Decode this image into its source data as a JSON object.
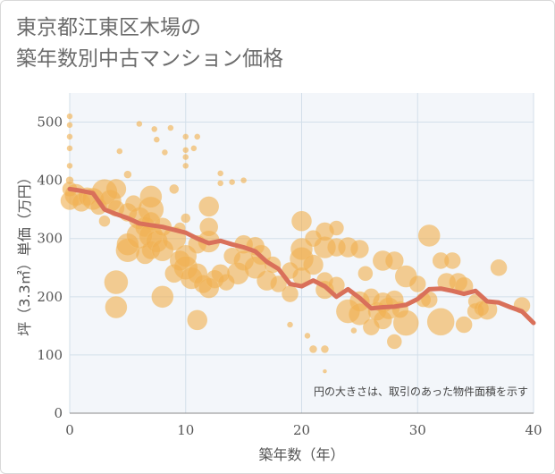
{
  "title": {
    "line1": "東京都江東区木場の",
    "line2": "築年数別中古マンション価格"
  },
  "colors": {
    "bubble": "#f0b050",
    "line": "#d9705a",
    "grid": "#d3dfea",
    "plot_bg": "#f3f6fa"
  },
  "chart_data": {
    "type": "scatter",
    "xlabel": "築年数（年）",
    "ylabel": "坪（3.3㎡）単価（万円）",
    "xlim": [
      0,
      40
    ],
    "ylim": [
      0,
      550
    ],
    "xticks": [
      "0",
      "10",
      "20",
      "30",
      "40"
    ],
    "yticks": [
      "0",
      "100",
      "200",
      "300",
      "400",
      "500"
    ],
    "annotation": "円の大きさは、取引のあった物件面積を示す",
    "grid": true,
    "trend_line": {
      "x": [
        0,
        1,
        2,
        3,
        4,
        5,
        6,
        7,
        8,
        9,
        10,
        11,
        12,
        13,
        14,
        15,
        16,
        17,
        18,
        19,
        20,
        21,
        22,
        23,
        24,
        25,
        26,
        27,
        28,
        29,
        30,
        31,
        32,
        33,
        34,
        35,
        36,
        37,
        38,
        39,
        40
      ],
      "y": [
        385,
        382,
        378,
        350,
        342,
        335,
        326,
        323,
        320,
        315,
        310,
        300,
        292,
        296,
        290,
        285,
        278,
        260,
        248,
        222,
        218,
        228,
        218,
        200,
        213,
        198,
        180,
        182,
        183,
        186,
        196,
        213,
        214,
        210,
        205,
        210,
        192,
        190,
        182,
        175,
        155
      ]
    },
    "points": [
      {
        "x": 0,
        "y": 510,
        "s": 3
      },
      {
        "x": 0,
        "y": 495,
        "s": 3
      },
      {
        "x": 0,
        "y": 475,
        "s": 3
      },
      {
        "x": 0,
        "y": 455,
        "s": 3
      },
      {
        "x": 0,
        "y": 425,
        "s": 3
      },
      {
        "x": 0,
        "y": 400,
        "s": 4
      },
      {
        "x": 0,
        "y": 385,
        "s": 8
      },
      {
        "x": 0,
        "y": 365,
        "s": 10
      },
      {
        "x": 0.5,
        "y": 375,
        "s": 12
      },
      {
        "x": 1,
        "y": 362,
        "s": 10
      },
      {
        "x": 1.5,
        "y": 372,
        "s": 10
      },
      {
        "x": 2,
        "y": 368,
        "s": 12
      },
      {
        "x": 2.5,
        "y": 355,
        "s": 9
      },
      {
        "x": 3,
        "y": 380,
        "s": 14
      },
      {
        "x": 3,
        "y": 330,
        "s": 6
      },
      {
        "x": 3.5,
        "y": 365,
        "s": 12
      },
      {
        "x": 4,
        "y": 385,
        "s": 11
      },
      {
        "x": 4,
        "y": 352,
        "s": 9
      },
      {
        "x": 4,
        "y": 225,
        "s": 13
      },
      {
        "x": 4,
        "y": 182,
        "s": 12
      },
      {
        "x": 4.3,
        "y": 450,
        "s": 3
      },
      {
        "x": 5,
        "y": 410,
        "s": 4
      },
      {
        "x": 5,
        "y": 345,
        "s": 10
      },
      {
        "x": 5,
        "y": 290,
        "s": 12
      },
      {
        "x": 5,
        "y": 280,
        "s": 13
      },
      {
        "x": 5.5,
        "y": 360,
        "s": 9
      },
      {
        "x": 6,
        "y": 497,
        "s": 3
      },
      {
        "x": 6,
        "y": 335,
        "s": 12
      },
      {
        "x": 6,
        "y": 305,
        "s": 14
      },
      {
        "x": 6.5,
        "y": 320,
        "s": 11
      },
      {
        "x": 6.5,
        "y": 272,
        "s": 10
      },
      {
        "x": 7,
        "y": 372,
        "s": 12
      },
      {
        "x": 7,
        "y": 350,
        "s": 14
      },
      {
        "x": 7,
        "y": 330,
        "s": 10
      },
      {
        "x": 7,
        "y": 305,
        "s": 13
      },
      {
        "x": 7,
        "y": 280,
        "s": 10
      },
      {
        "x": 7.3,
        "y": 488,
        "s": 3
      },
      {
        "x": 7.5,
        "y": 470,
        "s": 3
      },
      {
        "x": 7.5,
        "y": 295,
        "s": 12
      },
      {
        "x": 8,
        "y": 320,
        "s": 10
      },
      {
        "x": 8,
        "y": 280,
        "s": 12
      },
      {
        "x": 8,
        "y": 200,
        "s": 12
      },
      {
        "x": 8.2,
        "y": 448,
        "s": 3
      },
      {
        "x": 8.7,
        "y": 490,
        "s": 3
      },
      {
        "x": 9,
        "y": 385,
        "s": 5
      },
      {
        "x": 9,
        "y": 300,
        "s": 13
      },
      {
        "x": 9,
        "y": 240,
        "s": 10
      },
      {
        "x": 9.5,
        "y": 262,
        "s": 11
      },
      {
        "x": 9.5,
        "y": 318,
        "s": 6
      },
      {
        "x": 10,
        "y": 475,
        "s": 3
      },
      {
        "x": 10,
        "y": 452,
        "s": 3
      },
      {
        "x": 10,
        "y": 440,
        "s": 3
      },
      {
        "x": 10,
        "y": 425,
        "s": 3
      },
      {
        "x": 10,
        "y": 335,
        "s": 5
      },
      {
        "x": 10,
        "y": 270,
        "s": 12
      },
      {
        "x": 10,
        "y": 250,
        "s": 13
      },
      {
        "x": 10.5,
        "y": 232,
        "s": 12
      },
      {
        "x": 10.7,
        "y": 455,
        "s": 3
      },
      {
        "x": 11,
        "y": 475,
        "s": 3
      },
      {
        "x": 11,
        "y": 290,
        "s": 10
      },
      {
        "x": 11,
        "y": 240,
        "s": 11
      },
      {
        "x": 11,
        "y": 160,
        "s": 11
      },
      {
        "x": 11.5,
        "y": 222,
        "s": 10
      },
      {
        "x": 12,
        "y": 355,
        "s": 11
      },
      {
        "x": 12,
        "y": 320,
        "s": 10
      },
      {
        "x": 12,
        "y": 295,
        "s": 12
      },
      {
        "x": 12,
        "y": 215,
        "s": 11
      },
      {
        "x": 12.5,
        "y": 230,
        "s": 10
      },
      {
        "x": 13,
        "y": 412,
        "s": 3
      },
      {
        "x": 13,
        "y": 395,
        "s": 3
      },
      {
        "x": 13,
        "y": 240,
        "s": 10
      },
      {
        "x": 13.5,
        "y": 225,
        "s": 9
      },
      {
        "x": 14,
        "y": 397,
        "s": 3
      },
      {
        "x": 14,
        "y": 270,
        "s": 9
      },
      {
        "x": 14.5,
        "y": 240,
        "s": 12
      },
      {
        "x": 15,
        "y": 400,
        "s": 3
      },
      {
        "x": 15,
        "y": 290,
        "s": 10
      },
      {
        "x": 15,
        "y": 262,
        "s": 11
      },
      {
        "x": 16,
        "y": 287,
        "s": 10
      },
      {
        "x": 16,
        "y": 250,
        "s": 12
      },
      {
        "x": 16.5,
        "y": 272,
        "s": 11
      },
      {
        "x": 17,
        "y": 228,
        "s": 11
      },
      {
        "x": 17.5,
        "y": 255,
        "s": 9
      },
      {
        "x": 18,
        "y": 222,
        "s": 9
      },
      {
        "x": 19,
        "y": 245,
        "s": 9
      },
      {
        "x": 19,
        "y": 205,
        "s": 9
      },
      {
        "x": 19,
        "y": 152,
        "s": 3
      },
      {
        "x": 20,
        "y": 330,
        "s": 11
      },
      {
        "x": 20,
        "y": 282,
        "s": 12
      },
      {
        "x": 20,
        "y": 265,
        "s": 13
      },
      {
        "x": 20,
        "y": 235,
        "s": 10
      },
      {
        "x": 20.5,
        "y": 133,
        "s": 3
      },
      {
        "x": 21,
        "y": 300,
        "s": 9
      },
      {
        "x": 21,
        "y": 255,
        "s": 11
      },
      {
        "x": 21,
        "y": 110,
        "s": 4
      },
      {
        "x": 22,
        "y": 312,
        "s": 10
      },
      {
        "x": 22,
        "y": 285,
        "s": 12
      },
      {
        "x": 22,
        "y": 228,
        "s": 9
      },
      {
        "x": 22,
        "y": 212,
        "s": 10
      },
      {
        "x": 22,
        "y": 110,
        "s": 4
      },
      {
        "x": 22,
        "y": 72,
        "s": 2
      },
      {
        "x": 23,
        "y": 318,
        "s": 8
      },
      {
        "x": 23,
        "y": 285,
        "s": 10
      },
      {
        "x": 23,
        "y": 220,
        "s": 9
      },
      {
        "x": 24,
        "y": 285,
        "s": 11
      },
      {
        "x": 24,
        "y": 175,
        "s": 13
      },
      {
        "x": 24.5,
        "y": 142,
        "s": 3
      },
      {
        "x": 25,
        "y": 282,
        "s": 10
      },
      {
        "x": 25,
        "y": 192,
        "s": 11
      },
      {
        "x": 25,
        "y": 170,
        "s": 12
      },
      {
        "x": 25.5,
        "y": 240,
        "s": 8
      },
      {
        "x": 26,
        "y": 200,
        "s": 9
      },
      {
        "x": 26,
        "y": 148,
        "s": 9
      },
      {
        "x": 26.5,
        "y": 175,
        "s": 10
      },
      {
        "x": 27,
        "y": 262,
        "s": 11
      },
      {
        "x": 27,
        "y": 190,
        "s": 11
      },
      {
        "x": 27,
        "y": 160,
        "s": 10
      },
      {
        "x": 27.5,
        "y": 180,
        "s": 12
      },
      {
        "x": 28,
        "y": 262,
        "s": 10
      },
      {
        "x": 28,
        "y": 195,
        "s": 10
      },
      {
        "x": 28,
        "y": 123,
        "s": 8
      },
      {
        "x": 28.5,
        "y": 178,
        "s": 9
      },
      {
        "x": 29,
        "y": 235,
        "s": 12
      },
      {
        "x": 29,
        "y": 155,
        "s": 14
      },
      {
        "x": 30,
        "y": 222,
        "s": 9
      },
      {
        "x": 30.5,
        "y": 195,
        "s": 8
      },
      {
        "x": 31,
        "y": 305,
        "s": 12
      },
      {
        "x": 31,
        "y": 195,
        "s": 9
      },
      {
        "x": 32,
        "y": 262,
        "s": 9
      },
      {
        "x": 32,
        "y": 157,
        "s": 15
      },
      {
        "x": 32.5,
        "y": 225,
        "s": 10
      },
      {
        "x": 33,
        "y": 262,
        "s": 9
      },
      {
        "x": 33.5,
        "y": 225,
        "s": 10
      },
      {
        "x": 34,
        "y": 218,
        "s": 10
      },
      {
        "x": 34,
        "y": 152,
        "s": 9
      },
      {
        "x": 35,
        "y": 192,
        "s": 8
      },
      {
        "x": 35,
        "y": 175,
        "s": 9
      },
      {
        "x": 35.5,
        "y": 180,
        "s": 8
      },
      {
        "x": 36,
        "y": 178,
        "s": 11
      },
      {
        "x": 37,
        "y": 250,
        "s": 9
      },
      {
        "x": 39,
        "y": 185,
        "s": 9
      }
    ]
  }
}
